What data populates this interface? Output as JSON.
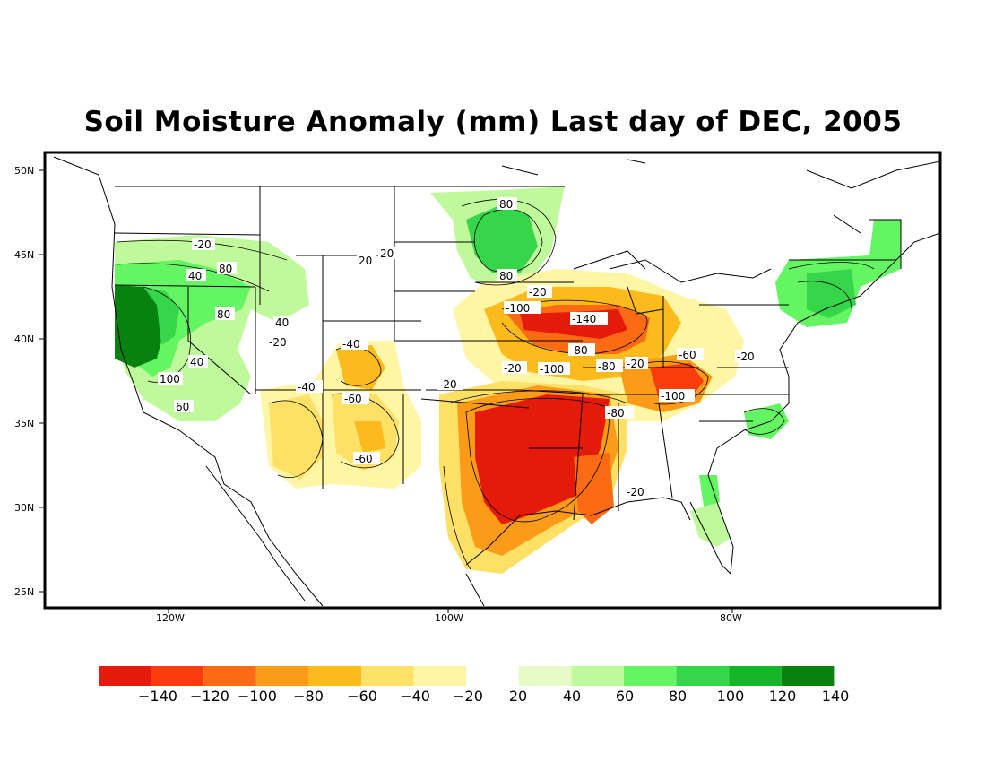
{
  "title": "Soil Moisture Anomaly (mm) Last day of DEC, 2005",
  "lat_ticks": [
    "50N",
    "45N",
    "40N",
    "35N",
    "30N",
    "25N"
  ],
  "lon_ticks": [
    "120W",
    "100W",
    "80W"
  ],
  "colorbar": {
    "colors": [
      "#e41a0b",
      "#fa3c0a",
      "#fb6b14",
      "#fc9b18",
      "#fcbb1c",
      "#fde066",
      "#fef5a5",
      "#ffffff",
      "#e6fbc8",
      "#c0f99b",
      "#63f562",
      "#35d64a",
      "#14b628",
      "#07820f"
    ],
    "labels": [
      "−140",
      "−120",
      "−100",
      "−80",
      "−60",
      "−40",
      "−20",
      "20",
      "40",
      "60",
      "80",
      "100",
      "120",
      "140"
    ]
  },
  "contour_labels": [
    "-20",
    "40",
    "60",
    "80",
    "100",
    "-140",
    "-100",
    "-80",
    "-60",
    "-40",
    "20"
  ]
}
